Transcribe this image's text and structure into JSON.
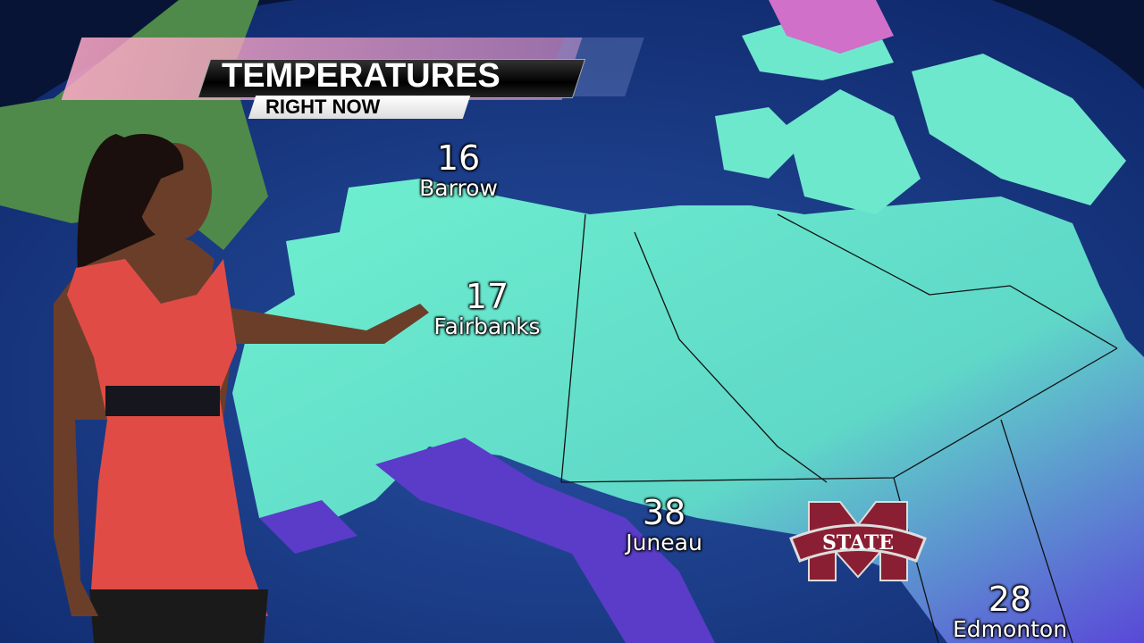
{
  "graphic": {
    "title": "TEMPERATURES",
    "subtitle": "RIGHT NOW"
  },
  "cities": [
    {
      "name": "Barrow",
      "temp": "16"
    },
    {
      "name": "Fairbanks",
      "temp": "17"
    },
    {
      "name": "Juneau",
      "temp": "38"
    },
    {
      "name": "Edmonton",
      "temp": "28"
    }
  ],
  "logo": {
    "text": "STATE",
    "color": "#8a1f33"
  },
  "colors": {
    "ocean": "#1a3a8a",
    "cold": "#5de0c8",
    "colder": "#5a3ad0"
  }
}
